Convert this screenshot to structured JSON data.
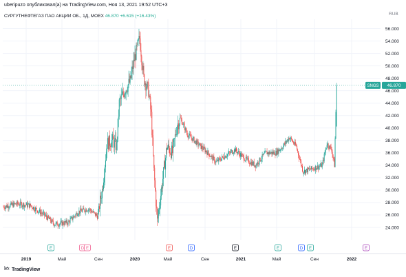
{
  "header": {
    "publish_line": "uberipuzo опубликовал(а) на TradingView.com, Ноя 13, 2021 19:52 UTC+3"
  },
  "symbol_bar": {
    "name": "СУРГУТНЕФТЕГАЗ ПАО АКЦИИ ОБ., 1Д, MOEX",
    "last": "46.870",
    "change": "+6.615 (+16.43%)"
  },
  "footer": {
    "brand": "TradingView",
    "logo_icon": "tradingview-logo-icon"
  },
  "colors": {
    "up": "#26a69a",
    "down": "#ef5350",
    "last_line": "#26a69a",
    "text": "#131722",
    "grid": "#f0f3fa"
  },
  "chart_data": {
    "type": "candlestick",
    "currency": "RUB",
    "ylim": [
      22,
      57.5
    ],
    "y_ticks": [
      "24.000",
      "26.000",
      "28.000",
      "30.000",
      "32.000",
      "34.000",
      "36.000",
      "38.000",
      "40.000",
      "42.000",
      "44.000",
      "46.000",
      "48.000",
      "50.000",
      "52.000",
      "54.000",
      "56.000"
    ],
    "x_ticks": [
      "2019",
      "Май",
      "Сен",
      "2020",
      "Май",
      "Сен",
      "2021",
      "Май",
      "Сен",
      "2022"
    ],
    "last_price_label": {
      "symbol": "SNGS",
      "value": "46.870",
      "price": 46.87
    },
    "event_markers": [
      {
        "label": "E",
        "color": "#26a69a"
      },
      {
        "label": "D",
        "color": "#f06292"
      },
      {
        "label": "E",
        "color": "#f06292"
      },
      {
        "label": "E",
        "color": "#ef5350"
      },
      {
        "label": "D",
        "color": "#2962ff"
      },
      {
        "label": "E",
        "color": "#131722"
      },
      {
        "label": "E",
        "color": "#26a69a"
      },
      {
        "label": "D",
        "color": "#2962ff"
      },
      {
        "label": "E",
        "color": "#26a69a"
      },
      {
        "label": "E",
        "color": "#ab47bc"
      }
    ],
    "anchors": [
      [
        0,
        27.3
      ],
      [
        20,
        27.8
      ],
      [
        40,
        27.5
      ],
      [
        60,
        26.0
      ],
      [
        75,
        24.5
      ],
      [
        95,
        24.8
      ],
      [
        110,
        26.5
      ],
      [
        125,
        27.0
      ],
      [
        138,
        25.8
      ],
      [
        145,
        30.0
      ],
      [
        152,
        37.5
      ],
      [
        160,
        38.0
      ],
      [
        166,
        37.0
      ],
      [
        170,
        44.0
      ],
      [
        178,
        46.0
      ],
      [
        186,
        47.5
      ],
      [
        192,
        51.0
      ],
      [
        200,
        54.5
      ],
      [
        206,
        48.0
      ],
      [
        213,
        46.0
      ],
      [
        217,
        42.0
      ],
      [
        221,
        33.0
      ],
      [
        226,
        25.0
      ],
      [
        233,
        31.0
      ],
      [
        240,
        37.0
      ],
      [
        248,
        36.0
      ],
      [
        255,
        40.5
      ],
      [
        260,
        41.5
      ],
      [
        270,
        39.0
      ],
      [
        285,
        37.5
      ],
      [
        300,
        36.0
      ],
      [
        312,
        34.5
      ],
      [
        325,
        35.5
      ],
      [
        340,
        36.5
      ],
      [
        355,
        35.0
      ],
      [
        370,
        34.0
      ],
      [
        385,
        36.0
      ],
      [
        400,
        36.0
      ],
      [
        410,
        37.0
      ],
      [
        420,
        38.5
      ],
      [
        430,
        37.0
      ],
      [
        440,
        33.0
      ],
      [
        455,
        33.5
      ],
      [
        468,
        34.0
      ],
      [
        475,
        37.5
      ],
      [
        482,
        36.5
      ],
      [
        486,
        34.0
      ],
      [
        489,
        46.87
      ]
    ]
  }
}
